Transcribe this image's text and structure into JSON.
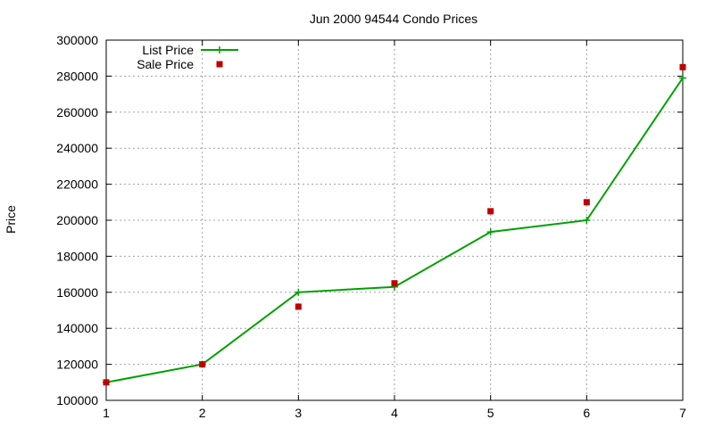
{
  "chart_data": {
    "type": "line",
    "title": "Jun 2000 94544 Condo Prices",
    "xlabel": "",
    "ylabel": "Price",
    "xlim": [
      1,
      7
    ],
    "ylim": [
      100000,
      300000
    ],
    "x_ticks": [
      "1",
      "2",
      "3",
      "4",
      "5",
      "6",
      "7"
    ],
    "y_ticks": [
      "100000",
      "120000",
      "140000",
      "160000",
      "180000",
      "200000",
      "220000",
      "240000",
      "260000",
      "280000",
      "300000"
    ],
    "grid": true,
    "legend_position": "top-left",
    "series": [
      {
        "name": "List Price",
        "style": "line-with-plus-markers",
        "color": "#00a000",
        "x": [
          1,
          2,
          3,
          4,
          5,
          6,
          7
        ],
        "values": [
          110000,
          120000,
          160000,
          163000,
          193500,
          200000,
          279000
        ]
      },
      {
        "name": "Sale Price",
        "style": "square-markers",
        "color": "#c00000",
        "x": [
          1,
          2,
          3,
          4,
          5,
          6,
          7
        ],
        "values": [
          110000,
          120000,
          152000,
          165000,
          205000,
          210000,
          285000
        ]
      }
    ]
  }
}
